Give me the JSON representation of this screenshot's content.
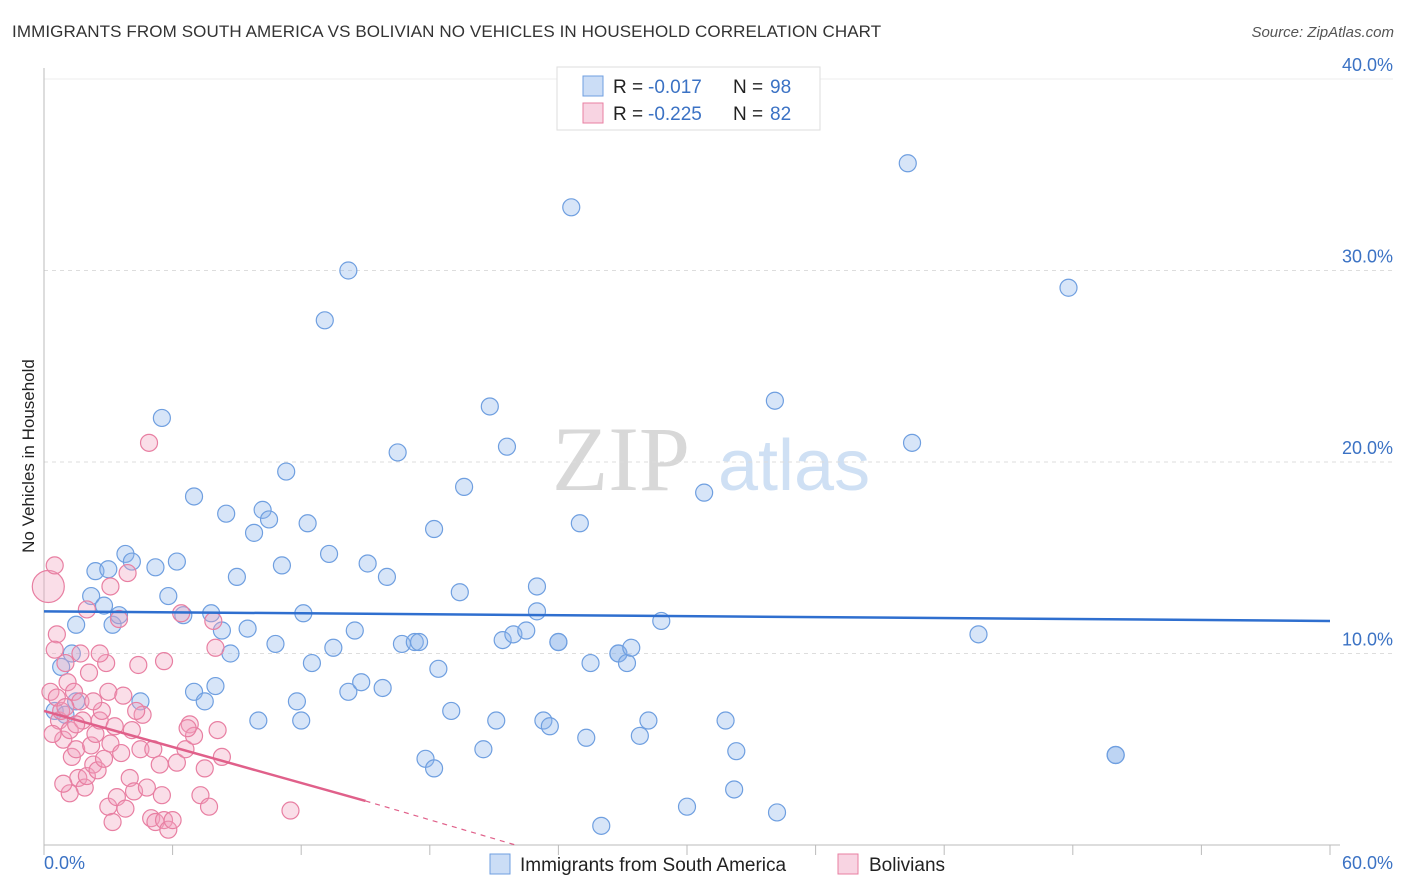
{
  "title": "IMMIGRANTS FROM SOUTH AMERICA VS BOLIVIAN NO VEHICLES IN HOUSEHOLD CORRELATION CHART",
  "source": "Source: ZipAtlas.com",
  "watermark": {
    "zip": "ZIP",
    "atlas": "atlas"
  },
  "colors": {
    "blue": "#6f9fe0",
    "blue_fill": "rgba(140,180,235,0.35)",
    "blue_line": "#2f6fcf",
    "pink": "#e87fa2",
    "pink_fill": "rgba(240,160,190,0.35)",
    "pink_line": "#e0608a",
    "tick_text": "#3b72c4"
  },
  "legend": {
    "row1": {
      "r_label": "R =",
      "r_value": "-0.017",
      "n_label": "N =",
      "n_value": "98"
    },
    "row2": {
      "r_label": "R =",
      "r_value": "-0.225",
      "n_label": "N =",
      "n_value": "82"
    }
  },
  "chart_data": {
    "type": "scatter",
    "title": "IMMIGRANTS FROM SOUTH AMERICA VS BOLIVIAN NO VEHICLES IN HOUSEHOLD CORRELATION CHART",
    "xlabel": "",
    "ylabel": "No Vehicles in Household",
    "xlim": [
      0,
      60
    ],
    "ylim": [
      0,
      40
    ],
    "x_tick_labels": [
      "0.0%",
      "60.0%"
    ],
    "y_tick_labels": [
      {
        "value": 10,
        "label": "10.0%"
      },
      {
        "value": 20,
        "label": "20.0%"
      },
      {
        "value": 30,
        "label": "30.0%"
      },
      {
        "value": 40,
        "label": "40.0%"
      }
    ],
    "series": [
      {
        "name": "Immigrants from South America",
        "color": "#6f9fe0",
        "trend": {
          "x": [
            0,
            60
          ],
          "y": [
            12.2,
            11.7
          ],
          "style": "solid"
        },
        "points": [
          [
            0.5,
            7.0
          ],
          [
            0.8,
            9.3
          ],
          [
            1.0,
            6.8
          ],
          [
            1.3,
            10.0
          ],
          [
            1.5,
            7.5
          ],
          [
            1.5,
            11.5
          ],
          [
            2.2,
            13.0
          ],
          [
            2.4,
            14.3
          ],
          [
            2.8,
            12.5
          ],
          [
            3.0,
            14.4
          ],
          [
            3.2,
            11.5
          ],
          [
            3.5,
            12.0
          ],
          [
            3.8,
            15.2
          ],
          [
            4.1,
            14.8
          ],
          [
            4.5,
            7.5
          ],
          [
            5.2,
            14.5
          ],
          [
            5.8,
            13.0
          ],
          [
            6.2,
            14.8
          ],
          [
            5.5,
            22.3
          ],
          [
            6.5,
            12.0
          ],
          [
            7.0,
            8.0
          ],
          [
            7.0,
            18.2
          ],
          [
            7.5,
            7.5
          ],
          [
            7.8,
            12.1
          ],
          [
            8.0,
            8.3
          ],
          [
            8.3,
            11.2
          ],
          [
            8.5,
            17.3
          ],
          [
            8.7,
            10.0
          ],
          [
            9.0,
            14.0
          ],
          [
            9.5,
            11.3
          ],
          [
            9.8,
            16.3
          ],
          [
            10.0,
            6.5
          ],
          [
            10.2,
            17.5
          ],
          [
            10.5,
            17.0
          ],
          [
            10.8,
            10.5
          ],
          [
            11.1,
            14.6
          ],
          [
            11.3,
            19.5
          ],
          [
            11.8,
            7.5
          ],
          [
            12.0,
            6.5
          ],
          [
            12.1,
            12.1
          ],
          [
            12.3,
            16.8
          ],
          [
            12.5,
            9.5
          ],
          [
            13.1,
            27.4
          ],
          [
            13.3,
            15.2
          ],
          [
            13.5,
            10.3
          ],
          [
            14.2,
            30.0
          ],
          [
            14.2,
            8.0
          ],
          [
            14.5,
            11.2
          ],
          [
            14.8,
            8.5
          ],
          [
            15.1,
            14.7
          ],
          [
            15.8,
            8.2
          ],
          [
            16.0,
            14.0
          ],
          [
            16.5,
            20.5
          ],
          [
            16.7,
            10.5
          ],
          [
            17.3,
            10.6
          ],
          [
            17.5,
            10.6
          ],
          [
            17.8,
            4.5
          ],
          [
            18.2,
            16.5
          ],
          [
            18.2,
            4.0
          ],
          [
            18.4,
            9.2
          ],
          [
            19.0,
            7.0
          ],
          [
            19.4,
            13.2
          ],
          [
            19.6,
            18.7
          ],
          [
            20.5,
            5.0
          ],
          [
            20.8,
            22.9
          ],
          [
            21.1,
            6.5
          ],
          [
            21.4,
            10.7
          ],
          [
            21.6,
            20.8
          ],
          [
            21.9,
            11.0
          ],
          [
            22.5,
            11.2
          ],
          [
            23.0,
            12.2
          ],
          [
            23.0,
            13.5
          ],
          [
            23.3,
            6.5
          ],
          [
            23.6,
            6.2
          ],
          [
            24.0,
            10.6
          ],
          [
            24.0,
            10.6
          ],
          [
            24.6,
            33.3
          ],
          [
            25.0,
            16.8
          ],
          [
            25.3,
            5.6
          ],
          [
            25.5,
            9.5
          ],
          [
            26.0,
            1.0
          ],
          [
            26.8,
            10.0
          ],
          [
            26.8,
            10.0
          ],
          [
            27.2,
            9.5
          ],
          [
            27.4,
            10.3
          ],
          [
            27.8,
            5.7
          ],
          [
            28.2,
            6.5
          ],
          [
            28.8,
            11.7
          ],
          [
            30.0,
            2.0
          ],
          [
            30.8,
            18.4
          ],
          [
            31.8,
            6.5
          ],
          [
            32.2,
            2.9
          ],
          [
            32.3,
            4.9
          ],
          [
            34.1,
            23.2
          ],
          [
            34.2,
            1.7
          ],
          [
            40.3,
            35.6
          ],
          [
            40.5,
            21.0
          ],
          [
            43.6,
            11.0
          ],
          [
            47.8,
            29.1
          ],
          [
            50.0,
            4.7
          ],
          [
            50.0,
            4.7
          ]
        ]
      },
      {
        "name": "Bolivians",
        "color": "#e87fa2",
        "trend": {
          "x": [
            0,
            15
          ],
          "y": [
            7.0,
            2.3
          ],
          "style": "solid",
          "dashed_extension": {
            "x": [
              15,
              22
            ],
            "y": [
              2.3,
              0
            ]
          }
        },
        "points": [
          [
            0.2,
            13.5
          ],
          [
            0.3,
            8.0
          ],
          [
            0.5,
            14.6
          ],
          [
            0.6,
            11.0
          ],
          [
            0.7,
            6.5
          ],
          [
            0.8,
            7.0
          ],
          [
            0.9,
            5.5
          ],
          [
            1.0,
            9.5
          ],
          [
            1.1,
            8.5
          ],
          [
            1.2,
            6.0
          ],
          [
            1.3,
            4.6
          ],
          [
            1.4,
            8.0
          ],
          [
            1.5,
            5.0
          ],
          [
            1.6,
            3.5
          ],
          [
            1.7,
            7.5
          ],
          [
            1.8,
            6.5
          ],
          [
            1.9,
            3.0
          ],
          [
            2.0,
            3.6
          ],
          [
            2.0,
            12.3
          ],
          [
            2.1,
            9.0
          ],
          [
            2.2,
            5.2
          ],
          [
            2.3,
            4.2
          ],
          [
            2.4,
            5.8
          ],
          [
            2.5,
            3.9
          ],
          [
            2.6,
            6.5
          ],
          [
            2.7,
            7.0
          ],
          [
            2.8,
            4.5
          ],
          [
            2.9,
            9.5
          ],
          [
            3.0,
            2.0
          ],
          [
            3.0,
            8.0
          ],
          [
            3.1,
            5.3
          ],
          [
            3.2,
            1.2
          ],
          [
            3.3,
            6.2
          ],
          [
            3.4,
            2.5
          ],
          [
            3.5,
            11.8
          ],
          [
            3.6,
            4.8
          ],
          [
            3.7,
            7.8
          ],
          [
            3.8,
            1.9
          ],
          [
            3.9,
            14.2
          ],
          [
            4.0,
            3.5
          ],
          [
            4.1,
            6.0
          ],
          [
            4.2,
            2.8
          ],
          [
            4.4,
            9.4
          ],
          [
            4.5,
            5.0
          ],
          [
            4.6,
            6.8
          ],
          [
            4.8,
            3.0
          ],
          [
            5.0,
            1.4
          ],
          [
            5.1,
            5.0
          ],
          [
            5.2,
            1.2
          ],
          [
            5.4,
            4.2
          ],
          [
            5.5,
            2.6
          ],
          [
            5.6,
            1.3
          ],
          [
            5.8,
            0.8
          ],
          [
            6.0,
            1.3
          ],
          [
            6.2,
            4.3
          ],
          [
            6.4,
            12.1
          ],
          [
            6.6,
            5.0
          ],
          [
            6.8,
            6.3
          ],
          [
            7.0,
            5.7
          ],
          [
            7.3,
            2.6
          ],
          [
            7.5,
            4.0
          ],
          [
            7.7,
            2.0
          ],
          [
            7.9,
            11.7
          ],
          [
            8.0,
            10.3
          ],
          [
            8.1,
            6.0
          ],
          [
            8.3,
            4.6
          ],
          [
            4.9,
            21.0
          ],
          [
            11.5,
            1.8
          ],
          [
            0.5,
            10.2
          ],
          [
            0.6,
            7.7
          ],
          [
            1.0,
            7.2
          ],
          [
            1.5,
            6.3
          ],
          [
            2.3,
            7.5
          ],
          [
            1.7,
            10.0
          ],
          [
            2.6,
            10.0
          ],
          [
            3.1,
            13.5
          ],
          [
            0.4,
            5.8
          ],
          [
            1.2,
            2.7
          ],
          [
            0.9,
            3.2
          ],
          [
            5.6,
            9.6
          ],
          [
            4.3,
            7.0
          ],
          [
            6.7,
            6.1
          ]
        ]
      }
    ]
  },
  "bottom_legend": {
    "item1": "Immigrants from South America",
    "item2": "Bolivians"
  }
}
